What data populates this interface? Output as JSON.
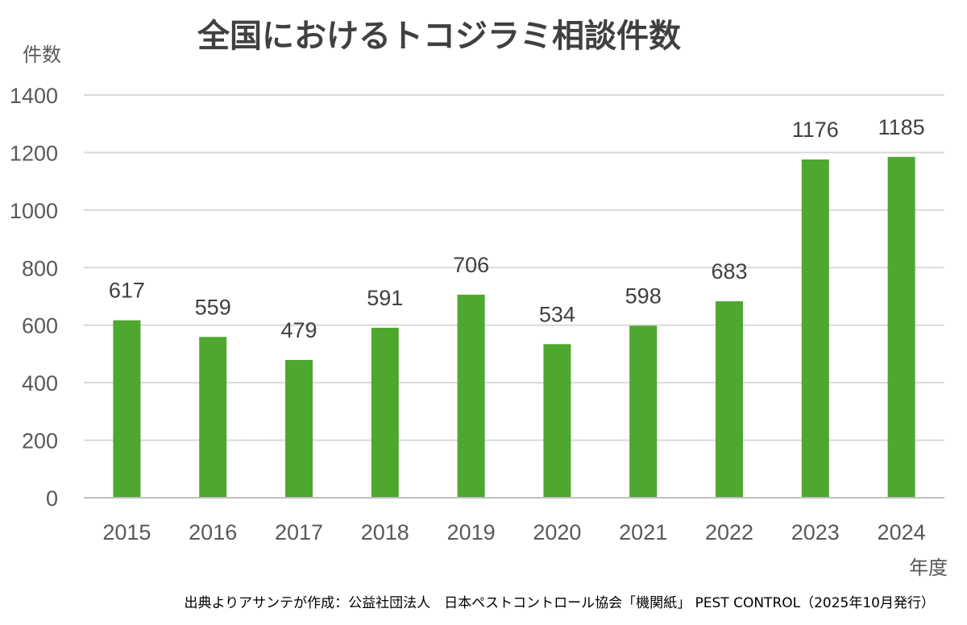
{
  "chart_data": {
    "type": "bar",
    "title": "全国におけるトコジラミ相談件数",
    "ylabel": "件数",
    "xlabel": "年度",
    "categories": [
      "2015",
      "2016",
      "2017",
      "2018",
      "2019",
      "2020",
      "2021",
      "2022",
      "2023",
      "2024"
    ],
    "values": [
      617,
      559,
      479,
      591,
      706,
      534,
      598,
      683,
      1176,
      1185
    ],
    "data_labels": [
      "617",
      "559",
      "479",
      "591",
      "706",
      "534",
      "598",
      "683",
      "1176",
      "1185"
    ],
    "ylim": [
      0,
      1400
    ],
    "yticks": [
      0,
      200,
      400,
      600,
      800,
      1000,
      1200,
      1400
    ],
    "ytick_labels": [
      "0",
      "200",
      "400",
      "600",
      "800",
      "1000",
      "1200",
      "1400"
    ],
    "grid": true,
    "legend": "none",
    "bar_color": "#4ea72e",
    "source": "出典よりアサンテが作成：公益社団法人　日本ペストコントロール協会「機関紙」 PEST CONTROL（2025年10月発行）"
  }
}
